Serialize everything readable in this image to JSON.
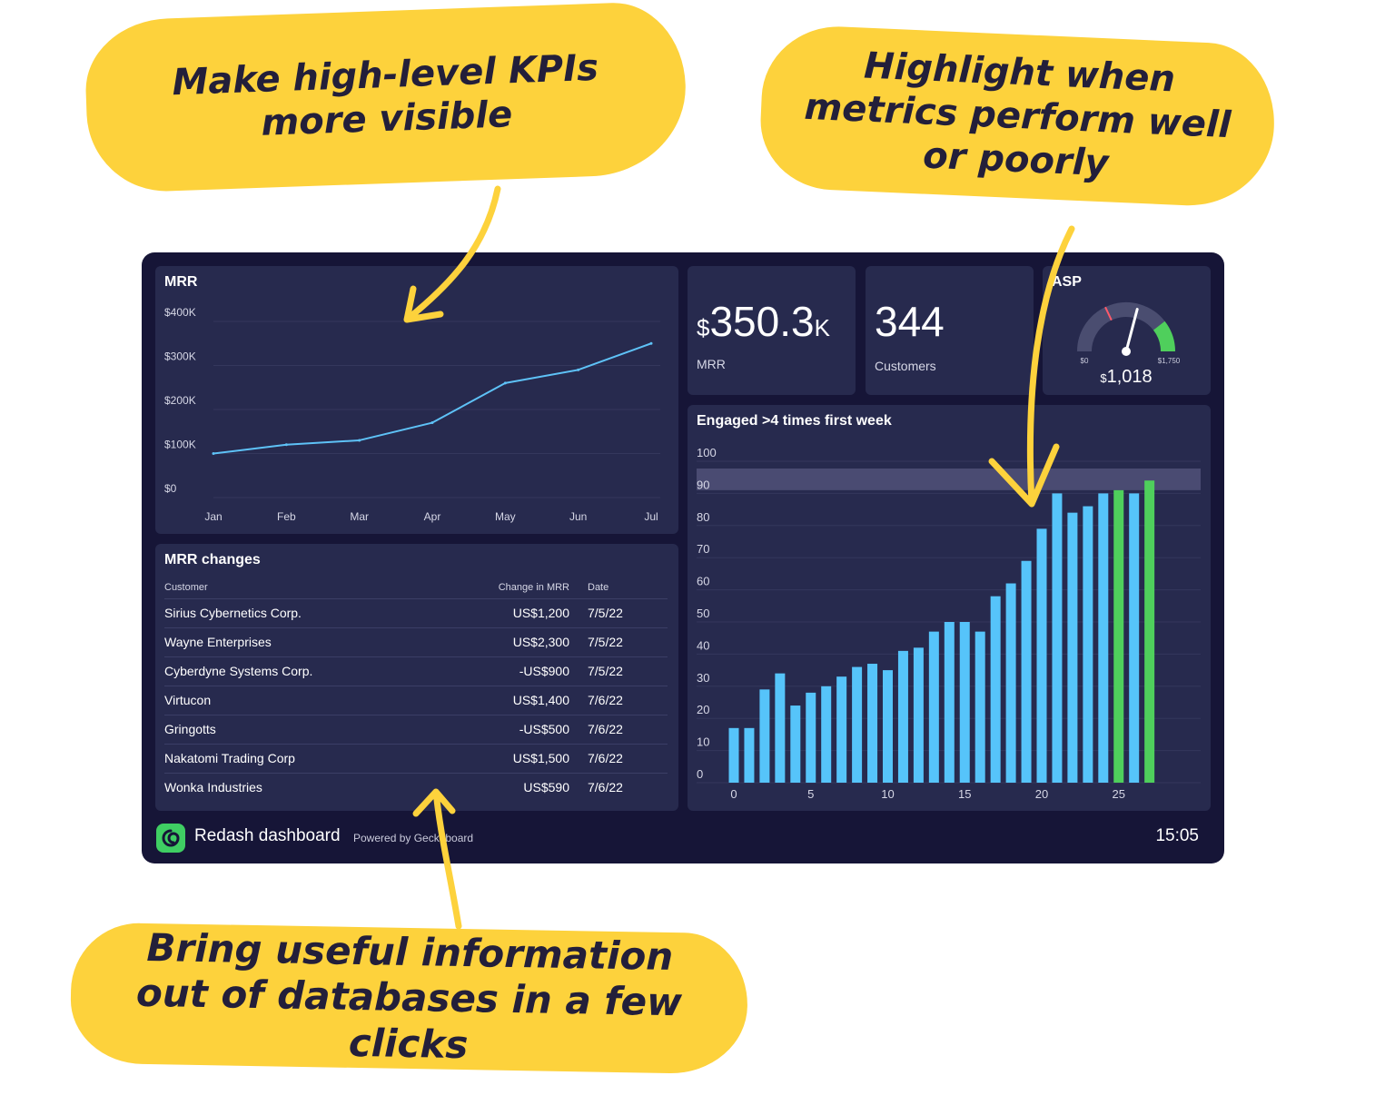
{
  "callouts": {
    "top_left": "Make high-level KPIs more visible",
    "top_right": "Highlight when metrics perform well or poorly",
    "bottom": "Bring useful information out of databases in a few clicks"
  },
  "colors": {
    "callout": "#fdd23c",
    "dashboard_bg": "#161537",
    "panel_bg": "#272a4e",
    "line": "#5ec2f7",
    "bar": "#56c4fa",
    "bar_highlight": "#4fcf5c",
    "gauge_good": "#4fcf5c",
    "gauge_track": "#4a4d70"
  },
  "mrr_chart": {
    "title": "MRR",
    "chart_data": {
      "type": "line",
      "title": "MRR",
      "categories": [
        "Jan",
        "Feb",
        "Mar",
        "Apr",
        "May",
        "Jun",
        "Jul"
      ],
      "values": [
        100000,
        120000,
        130000,
        170000,
        260000,
        290000,
        350000
      ],
      "y_ticks": [
        "$0",
        "$100K",
        "$200K",
        "$300K",
        "$400K"
      ],
      "ylim": [
        0,
        400000
      ],
      "grid": true
    }
  },
  "kpis": {
    "mrr": {
      "currency": "$",
      "value": "350.3",
      "suffix": "K",
      "label": "MRR"
    },
    "customers": {
      "value": "344",
      "label": "Customers"
    },
    "asp": {
      "title": "ASP",
      "min_label": "$0",
      "max_label": "$1,750",
      "currency": "$",
      "value_text": "1,018",
      "value": 1018,
      "min": 0,
      "max": 1750,
      "good_from": 1380,
      "target": 630
    }
  },
  "mrr_changes": {
    "title": "MRR changes",
    "columns": [
      "Customer",
      "Change in MRR",
      "Date"
    ],
    "rows": [
      [
        "Sirius Cybernetics Corp.",
        "US$1,200",
        "7/5/22"
      ],
      [
        "Wayne Enterprises",
        "US$2,300",
        "7/5/22"
      ],
      [
        "Cyberdyne Systems Corp.",
        "-US$900",
        "7/5/22"
      ],
      [
        "Virtucon",
        "US$1,400",
        "7/6/22"
      ],
      [
        "Gringotts",
        "-US$500",
        "7/6/22"
      ],
      [
        "Nakatomi Trading Corp",
        "US$1,500",
        "7/6/22"
      ],
      [
        "Wonka Industries",
        "US$590",
        "7/6/22"
      ]
    ]
  },
  "engaged_chart": {
    "title": "Engaged >4 times first week",
    "chart_data": {
      "type": "bar",
      "title": "Engaged >4 times first week",
      "x": [
        0,
        1,
        2,
        3,
        4,
        5,
        6,
        7,
        8,
        9,
        10,
        11,
        12,
        13,
        14,
        15,
        16,
        17,
        18,
        19,
        20,
        21,
        22,
        23,
        24,
        25,
        26,
        27
      ],
      "values": [
        17,
        17,
        29,
        34,
        24,
        28,
        30,
        33,
        36,
        37,
        35,
        41,
        42,
        47,
        50,
        50,
        47,
        58,
        62,
        69,
        79,
        90,
        84,
        86,
        90,
        91,
        90,
        94
      ],
      "highlighted_x": [
        25,
        27
      ],
      "x_ticks": [
        0,
        5,
        10,
        15,
        20,
        25
      ],
      "y_ticks": [
        0,
        10,
        20,
        30,
        40,
        50,
        60,
        70,
        80,
        90,
        100
      ],
      "ylim": [
        0,
        100
      ],
      "target_band": [
        91,
        100
      ],
      "grid": true
    }
  },
  "footer": {
    "title": "Redash dashboard",
    "powered": "Powered by Geckoboard",
    "time": "15:05"
  }
}
